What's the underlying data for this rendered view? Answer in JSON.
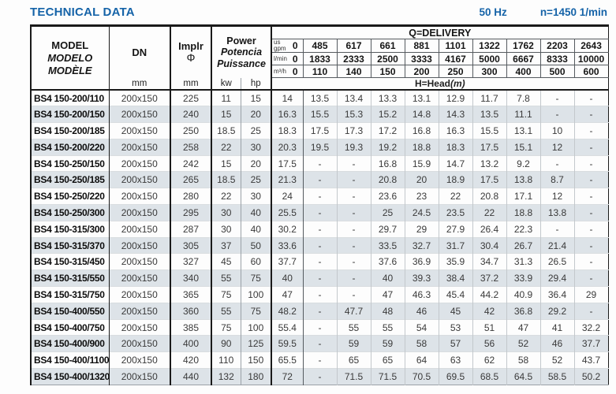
{
  "title": "TECHNICAL DATA",
  "frequency": "50 Hz",
  "speed": "n=1450 1/min",
  "colors": {
    "accent_blue": "#1563a8",
    "stripe_row": "#dde3e8"
  },
  "header": {
    "model": {
      "line1": "MODEL",
      "line2": "MODELO",
      "line3": "MODÈLE"
    },
    "dn": {
      "label": "DN",
      "unit": "mm"
    },
    "impeller": {
      "label": "Implr",
      "symbol": "Φ",
      "unit": "mm"
    },
    "power": {
      "line1": "Power",
      "line2": "Potencia",
      "line3": "Puissance",
      "unit_kw": "kw",
      "unit_hp": "hp"
    },
    "delivery": {
      "title": "Q=DELIVERY",
      "unit_rows": [
        {
          "unit": [
            "us",
            "gpm"
          ],
          "values": [
            "0",
            "485",
            "617",
            "661",
            "881",
            "1101",
            "1322",
            "1762",
            "2203",
            "2643"
          ]
        },
        {
          "unit": [
            "l/min"
          ],
          "values": [
            "0",
            "1833",
            "2333",
            "2500",
            "3333",
            "4167",
            "5000",
            "6667",
            "8333",
            "10000"
          ]
        },
        {
          "unit": [
            "m³/h"
          ],
          "values": [
            "0",
            "110",
            "140",
            "150",
            "200",
            "250",
            "300",
            "400",
            "500",
            "600"
          ]
        }
      ],
      "head_label": "H=Head",
      "head_unit": "(m)"
    }
  },
  "rows": [
    {
      "model": "BS4 150-200/110",
      "dn": "200x150",
      "impeller": "225",
      "kw": "11",
      "hp": "15",
      "head": [
        "14",
        "13.5",
        "13.4",
        "13.3",
        "13.1",
        "12.9",
        "11.7",
        "7.8",
        "-",
        "-"
      ]
    },
    {
      "model": "BS4 150-200/150",
      "dn": "200x150",
      "impeller": "240",
      "kw": "15",
      "hp": "20",
      "head": [
        "16.3",
        "15.5",
        "15.3",
        "15.2",
        "14.8",
        "14.3",
        "13.5",
        "11.1",
        "-",
        "-"
      ]
    },
    {
      "model": "BS4 150-200/185",
      "dn": "200x150",
      "impeller": "250",
      "kw": "18.5",
      "hp": "25",
      "head": [
        "18.3",
        "17.5",
        "17.3",
        "17.2",
        "16.8",
        "16.3",
        "15.5",
        "13.1",
        "10",
        "-"
      ]
    },
    {
      "model": "BS4 150-200/220",
      "dn": "200x150",
      "impeller": "258",
      "kw": "22",
      "hp": "30",
      "head": [
        "20.3",
        "19.5",
        "19.3",
        "19.2",
        "18.8",
        "18.3",
        "17.5",
        "15.1",
        "12",
        "-"
      ]
    },
    {
      "model": "BS4 150-250/150",
      "dn": "200x150",
      "impeller": "242",
      "kw": "15",
      "hp": "20",
      "head": [
        "17.5",
        "-",
        "-",
        "16.8",
        "15.9",
        "14.7",
        "13.2",
        "9.2",
        "-",
        "-"
      ]
    },
    {
      "model": "BS4 150-250/185",
      "dn": "200x150",
      "impeller": "265",
      "kw": "18.5",
      "hp": "25",
      "head": [
        "21.3",
        "-",
        "-",
        "20.8",
        "20",
        "18.9",
        "17.5",
        "13.8",
        "8.7",
        "-"
      ]
    },
    {
      "model": "BS4 150-250/220",
      "dn": "200x150",
      "impeller": "280",
      "kw": "22",
      "hp": "30",
      "head": [
        "24",
        "-",
        "-",
        "23.6",
        "23",
        "22",
        "20.8",
        "17.1",
        "12",
        "-"
      ]
    },
    {
      "model": "BS4 150-250/300",
      "dn": "200x150",
      "impeller": "295",
      "kw": "30",
      "hp": "40",
      "head": [
        "25.5",
        "-",
        "-",
        "25",
        "24.5",
        "23.5",
        "22",
        "18.8",
        "13.8",
        "-"
      ]
    },
    {
      "model": "BS4 150-315/300",
      "dn": "200x150",
      "impeller": "287",
      "kw": "30",
      "hp": "40",
      "head": [
        "30.2",
        "-",
        "-",
        "29.7",
        "29",
        "27.9",
        "26.4",
        "22.3",
        "-",
        "-"
      ]
    },
    {
      "model": "BS4 150-315/370",
      "dn": "200x150",
      "impeller": "305",
      "kw": "37",
      "hp": "50",
      "head": [
        "33.6",
        "-",
        "-",
        "33.5",
        "32.7",
        "31.7",
        "30.4",
        "26.7",
        "21.4",
        "-"
      ]
    },
    {
      "model": "BS4 150-315/450",
      "dn": "200x150",
      "impeller": "327",
      "kw": "45",
      "hp": "60",
      "head": [
        "37.7",
        "-",
        "-",
        "37.6",
        "36.9",
        "35.9",
        "34.7",
        "31.3",
        "26.5",
        "-"
      ]
    },
    {
      "model": "BS4 150-315/550",
      "dn": "200x150",
      "impeller": "340",
      "kw": "55",
      "hp": "75",
      "head": [
        "40",
        "-",
        "-",
        "40",
        "39.3",
        "38.4",
        "37.2",
        "33.9",
        "29.4",
        "-"
      ]
    },
    {
      "model": "BS4 150-315/750",
      "dn": "200x150",
      "impeller": "365",
      "kw": "75",
      "hp": "100",
      "head": [
        "47",
        "-",
        "-",
        "47",
        "46.3",
        "45.4",
        "44.2",
        "40.9",
        "36.4",
        "29"
      ]
    },
    {
      "model": "BS4 150-400/550",
      "dn": "200x150",
      "impeller": "360",
      "kw": "55",
      "hp": "75",
      "head": [
        "48.2",
        "-",
        "47.7",
        "48",
        "46",
        "45",
        "42",
        "36.8",
        "29.2",
        "-"
      ]
    },
    {
      "model": "BS4 150-400/750",
      "dn": "200x150",
      "impeller": "385",
      "kw": "75",
      "hp": "100",
      "head": [
        "55.4",
        "-",
        "55",
        "55",
        "54",
        "53",
        "51",
        "47",
        "41",
        "32.2"
      ]
    },
    {
      "model": "BS4 150-400/900",
      "dn": "200x150",
      "impeller": "400",
      "kw": "90",
      "hp": "125",
      "head": [
        "59.5",
        "-",
        "59",
        "59",
        "58",
        "57",
        "56",
        "52",
        "46",
        "37.7"
      ]
    },
    {
      "model": "BS4 150-400/1100",
      "dn": "200x150",
      "impeller": "420",
      "kw": "110",
      "hp": "150",
      "head": [
        "65.5",
        "-",
        "65",
        "65",
        "64",
        "63",
        "62",
        "58",
        "52",
        "43.7"
      ]
    },
    {
      "model": "BS4 150-400/1320",
      "dn": "200x150",
      "impeller": "440",
      "kw": "132",
      "hp": "180",
      "head": [
        "72",
        "-",
        "71.5",
        "71.5",
        "70.5",
        "69.5",
        "68.5",
        "64.5",
        "58.5",
        "50.2"
      ]
    }
  ]
}
